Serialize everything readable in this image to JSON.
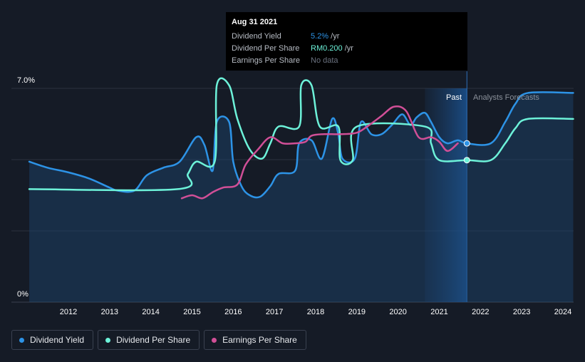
{
  "tooltip": {
    "date": "Aug 31 2021",
    "rows": [
      {
        "name": "Dividend Yield",
        "value": "5.2%",
        "unit": " /yr",
        "color": "#2d93e6"
      },
      {
        "name": "Dividend Per Share",
        "value": "RM0.200",
        "unit": " /yr",
        "color": "#6df2d9"
      },
      {
        "name": "Earnings Per Share",
        "value": "No data",
        "unit": ""
      }
    ]
  },
  "regions": {
    "past": "Past",
    "forecast": "Analysts Forecasts"
  },
  "legend": [
    {
      "label": "Dividend Yield",
      "color": "#2d93e6"
    },
    {
      "label": "Dividend Per Share",
      "color": "#6df2d9"
    },
    {
      "label": "Earnings Per Share",
      "color": "#d14f97"
    }
  ],
  "chart_data": {
    "type": "line",
    "x_ticks": [
      "2012",
      "2013",
      "2014",
      "2015",
      "2016",
      "2017",
      "2018",
      "2019",
      "2020",
      "2021",
      "2022",
      "2023",
      "2024"
    ],
    "y_ticks": [
      "0%",
      "7.0%"
    ],
    "ylim": [
      0,
      7.0
    ],
    "xlim": [
      2011.05,
      2024.25
    ],
    "past_until": 2021.67,
    "highlight_start": 2020.65,
    "series": [
      {
        "name": "Dividend Yield",
        "color": "#2d93e6",
        "fill": true,
        "points": [
          [
            2011.05,
            4.6
          ],
          [
            2011.5,
            4.4
          ],
          [
            2012.0,
            4.25
          ],
          [
            2012.5,
            4.05
          ],
          [
            2013.0,
            3.75
          ],
          [
            2013.2,
            3.65
          ],
          [
            2013.6,
            3.65
          ],
          [
            2013.9,
            4.15
          ],
          [
            2014.3,
            4.4
          ],
          [
            2014.7,
            4.6
          ],
          [
            2015.1,
            5.4
          ],
          [
            2015.3,
            5.15
          ],
          [
            2015.5,
            4.3
          ],
          [
            2015.6,
            5.9
          ],
          [
            2015.9,
            5.9
          ],
          [
            2016.0,
            4.6
          ],
          [
            2016.2,
            3.8
          ],
          [
            2016.4,
            3.5
          ],
          [
            2016.65,
            3.45
          ],
          [
            2016.9,
            3.8
          ],
          [
            2017.1,
            4.2
          ],
          [
            2017.5,
            4.3
          ],
          [
            2017.6,
            5.2
          ],
          [
            2017.9,
            5.3
          ],
          [
            2018.15,
            4.7
          ],
          [
            2018.4,
            6.0
          ],
          [
            2018.55,
            5.5
          ],
          [
            2018.65,
            4.7
          ],
          [
            2018.95,
            4.7
          ],
          [
            2019.1,
            5.9
          ],
          [
            2019.35,
            5.5
          ],
          [
            2019.6,
            5.5
          ],
          [
            2019.85,
            5.8
          ],
          [
            2020.1,
            6.15
          ],
          [
            2020.3,
            5.8
          ],
          [
            2020.45,
            6.05
          ],
          [
            2020.65,
            6.2
          ],
          [
            2020.8,
            5.9
          ],
          [
            2021.0,
            5.4
          ],
          [
            2021.2,
            5.2
          ],
          [
            2021.45,
            5.3
          ],
          [
            2021.67,
            5.2
          ],
          [
            2022.25,
            5.2
          ],
          [
            2022.6,
            5.9
          ],
          [
            2022.85,
            6.5
          ],
          [
            2023.15,
            6.85
          ],
          [
            2024.25,
            6.85
          ]
        ]
      },
      {
        "name": "Dividend Per Share",
        "color": "#6df2d9",
        "fill": false,
        "points": [
          [
            2011.05,
            3.7
          ],
          [
            2014.65,
            3.7
          ],
          [
            2014.9,
            4.2
          ],
          [
            2015.1,
            4.6
          ],
          [
            2015.55,
            4.6
          ],
          [
            2015.6,
            7.1
          ],
          [
            2015.9,
            7.1
          ],
          [
            2016.1,
            6.0
          ],
          [
            2016.4,
            5.0
          ],
          [
            2016.7,
            4.7
          ],
          [
            2016.9,
            5.2
          ],
          [
            2017.1,
            5.75
          ],
          [
            2017.6,
            5.75
          ],
          [
            2017.65,
            7.1
          ],
          [
            2017.9,
            7.1
          ],
          [
            2018.1,
            5.75
          ],
          [
            2018.55,
            5.75
          ],
          [
            2018.6,
            4.65
          ],
          [
            2018.9,
            4.65
          ],
          [
            2019.0,
            5.75
          ],
          [
            2020.65,
            5.75
          ],
          [
            2020.8,
            5.2
          ],
          [
            2021.0,
            4.65
          ],
          [
            2021.67,
            4.65
          ],
          [
            2022.25,
            4.65
          ],
          [
            2022.6,
            5.2
          ],
          [
            2022.85,
            5.7
          ],
          [
            2023.15,
            6.0
          ],
          [
            2024.25,
            6.0
          ]
        ]
      },
      {
        "name": "Earnings Per Share",
        "color": "#d14f97",
        "fill": false,
        "points": [
          [
            2014.75,
            3.4
          ],
          [
            2015.0,
            3.5
          ],
          [
            2015.25,
            3.4
          ],
          [
            2015.5,
            3.6
          ],
          [
            2015.75,
            3.75
          ],
          [
            2016.1,
            3.85
          ],
          [
            2016.3,
            4.5
          ],
          [
            2016.6,
            5.0
          ],
          [
            2016.9,
            5.4
          ],
          [
            2017.2,
            5.2
          ],
          [
            2017.5,
            5.2
          ],
          [
            2017.75,
            5.25
          ],
          [
            2017.9,
            5.45
          ],
          [
            2018.2,
            5.5
          ],
          [
            2018.6,
            5.5
          ],
          [
            2019.0,
            5.55
          ],
          [
            2019.3,
            5.8
          ],
          [
            2019.6,
            6.1
          ],
          [
            2019.9,
            6.4
          ],
          [
            2020.2,
            6.25
          ],
          [
            2020.5,
            5.4
          ],
          [
            2020.8,
            5.4
          ],
          [
            2021.0,
            5.25
          ],
          [
            2021.2,
            4.95
          ],
          [
            2021.45,
            5.2
          ]
        ]
      }
    ],
    "markers": [
      {
        "series": "Dividend Yield",
        "x": 2021.67,
        "y": 5.2
      },
      {
        "series": "Dividend Per Share",
        "x": 2021.67,
        "y": 4.65
      }
    ]
  }
}
